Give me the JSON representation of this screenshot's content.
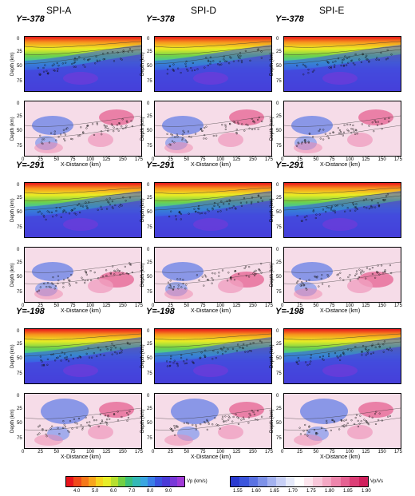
{
  "columns": [
    "SPI-A",
    "SPI-D",
    "SPI-E"
  ],
  "sections": [
    {
      "label": "Y=-378"
    },
    {
      "label": "Y=-291"
    },
    {
      "label": "Y=-198"
    }
  ],
  "axes": {
    "ylabel": "Depth (km)",
    "xlabel": "X-Distance (km)",
    "yticks": [
      "0",
      "25",
      "50",
      "75"
    ],
    "xticks": [
      "0",
      "25",
      "50",
      "75",
      "100",
      "125",
      "150",
      "175"
    ]
  },
  "colorbar_vp": {
    "label": "Vp (km/s)",
    "ticks": [
      "4.0",
      "5.0",
      "6.0",
      "7.0",
      "8.0",
      "9.0"
    ],
    "colors": [
      "#e8141c",
      "#f04a1a",
      "#f6781a",
      "#f9a51c",
      "#f6d51e",
      "#e8ee28",
      "#b6e02e",
      "#72d044",
      "#3cc07a",
      "#34b8b6",
      "#3aa6e0",
      "#3a7ee8",
      "#3a54e0",
      "#4a3ad8",
      "#7838d8",
      "#a03ad6"
    ]
  },
  "colorbar_vpvs": {
    "label": "Vp/Vs",
    "ticks": [
      "1.55",
      "1.60",
      "1.65",
      "1.70",
      "1.75",
      "1.80",
      "1.85",
      "1.90"
    ],
    "colors": [
      "#2a3ad0",
      "#3c56dc",
      "#5a72e2",
      "#7e92e8",
      "#a4b2f0",
      "#c8d0f6",
      "#e6eafa",
      "#ffffff",
      "#fce6ee",
      "#f8c8da",
      "#f4a8c4",
      "#ee86ac",
      "#e66292",
      "#dc3e76",
      "#d0205c"
    ]
  }
}
